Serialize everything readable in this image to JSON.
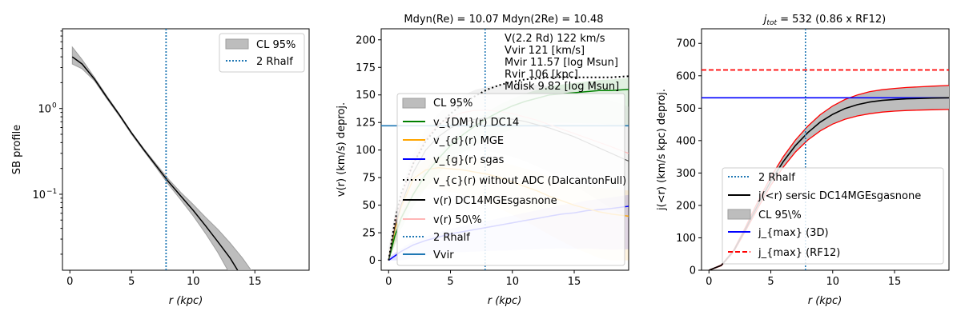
{
  "colors": {
    "grey_band": "#bdbdbd",
    "dm": "#008000",
    "disk": "#ffa500",
    "gas": "#0000ff",
    "vc": "#000000",
    "v50": "#ffb6b6",
    "rhalf": "#1f77b4",
    "vvir": "#1f77b4",
    "red": "#ff0000"
  },
  "chart_data": [
    {
      "type": "line",
      "title": "",
      "xlabel": "r (kpc)",
      "ylabel": "SB profile",
      "yscale": "log",
      "xlim": [
        -0.6,
        19.4
      ],
      "ylim": [
        0.013,
        8.5
      ],
      "xticks": [
        0,
        5,
        10,
        15
      ],
      "xtick_labels": [
        "0",
        "5",
        "10",
        "15"
      ],
      "yticks": [
        0.1,
        1
      ],
      "ytick_labels": [
        "10^{-1}",
        "10^{0}"
      ],
      "ytick_base": "10",
      "ytick_exps": [
        "−1",
        "0"
      ],
      "rhalf_x": 7.8,
      "legend": {
        "position": "upper right",
        "items": [
          "CL 95%",
          "2 Rhalf"
        ]
      },
      "series": [
        {
          "name": "SB",
          "x": [
            0.2,
            1,
            2,
            3,
            4,
            5,
            6,
            7,
            8,
            9,
            10,
            11,
            12,
            13,
            13.6
          ],
          "values": [
            4.0,
            3.3,
            2.2,
            1.35,
            0.85,
            0.52,
            0.33,
            0.215,
            0.14,
            0.095,
            0.065,
            0.043,
            0.028,
            0.018,
            0.013
          ]
        },
        {
          "name": "CL 95% upper",
          "x": [
            0.2,
            1,
            2,
            3,
            4,
            5,
            6,
            7,
            8,
            9,
            10,
            11,
            12,
            13,
            14,
            14.7
          ],
          "values": [
            5.2,
            3.7,
            2.3,
            1.4,
            0.87,
            0.53,
            0.34,
            0.225,
            0.15,
            0.105,
            0.076,
            0.054,
            0.039,
            0.027,
            0.018,
            0.013
          ]
        },
        {
          "name": "CL 95% lower",
          "x": [
            0.2,
            1,
            2,
            3,
            4,
            5,
            6,
            7,
            8,
            9,
            10,
            11,
            12,
            12.8
          ],
          "values": [
            3.3,
            2.9,
            2.1,
            1.3,
            0.82,
            0.5,
            0.32,
            0.205,
            0.13,
            0.086,
            0.056,
            0.035,
            0.021,
            0.013
          ]
        }
      ]
    },
    {
      "type": "line",
      "title": "Mdyn(Re) = 10.07  Mdyn(2Re) = 10.48",
      "xlabel": "r (kpc)",
      "ylabel": "v(r) (km/s) deproj.",
      "xlim": [
        -0.6,
        19.4
      ],
      "ylim": [
        -9,
        210
      ],
      "xticks": [
        0,
        5,
        10,
        15
      ],
      "xtick_labels": [
        "0",
        "5",
        "10",
        "15"
      ],
      "yticks": [
        0,
        25,
        50,
        75,
        100,
        125,
        150,
        175,
        200
      ],
      "ytick_labels": [
        "0",
        "25",
        "50",
        "75",
        "100",
        "125",
        "150",
        "175",
        "200"
      ],
      "rhalf_x": 7.8,
      "vvir_y": 122,
      "annotations": [
        "V(2.2 Rd) 122 km/s",
        "Vvir 121 [km/s]",
        "Mvir 11.57 [log Msun]",
        "Rvir 106 [kpc]",
        "Mdisk 9.82 [log Msun]"
      ],
      "legend": {
        "position": "center right",
        "items": [
          "CL 95%",
          "v_{DM}(r) DC14",
          "v_{d}(r) MGE",
          "v_{g}(r) sgas",
          "v_{c}(r) without ADC (DalcantonFull)",
          "v(r) DC14MGEsgasnone",
          "v(r) 50\\%",
          "2 Rhalf",
          "Vvir"
        ]
      },
      "series": [
        {
          "name": "v_DM(r) DC14",
          "x": [
            0,
            0.5,
            1,
            2,
            3,
            4,
            5,
            6,
            7,
            8,
            9,
            10,
            11,
            12,
            13,
            14,
            15,
            16,
            17,
            18,
            19.4
          ],
          "values": [
            0,
            22,
            38,
            60,
            78,
            92,
            104,
            114,
            122,
            129,
            135,
            140,
            144,
            147,
            150,
            151,
            152,
            153,
            154,
            154,
            155
          ]
        },
        {
          "name": "v_d(r) MGE",
          "x": [
            0,
            0.5,
            1,
            2,
            3,
            4,
            5,
            6,
            7,
            8,
            9,
            10,
            11,
            12,
            13,
            14,
            15,
            16,
            17,
            18,
            19.4
          ],
          "values": [
            0,
            28,
            48,
            74,
            82,
            84,
            83,
            82,
            80,
            78,
            75,
            71,
            67,
            63,
            58,
            54,
            50,
            47,
            44,
            42,
            40
          ]
        },
        {
          "name": "v_g(r) sgas",
          "x": [
            0,
            1,
            2,
            3,
            4,
            5,
            6,
            7,
            8,
            9,
            10,
            11,
            12,
            13,
            14,
            15,
            16,
            17,
            18,
            19.4
          ],
          "values": [
            0,
            8,
            14,
            18,
            21,
            24,
            26,
            28,
            30,
            32,
            34,
            36,
            38,
            40,
            42,
            43,
            45,
            46,
            47,
            49
          ]
        },
        {
          "name": "v_c(r) without ADC (DalcantonFull)",
          "x": [
            0,
            0.5,
            1,
            2,
            3,
            4,
            5,
            6,
            7,
            8,
            9,
            10,
            11,
            12,
            13,
            14,
            15,
            16,
            17,
            18,
            19.4
          ],
          "values": [
            0,
            35,
            60,
            88,
            108,
            122,
            133,
            142,
            149,
            155,
            159,
            162,
            164,
            165,
            166,
            166,
            166,
            166,
            166,
            166,
            167
          ]
        },
        {
          "name": "v(r) DC14MGEsgasnone",
          "x": [
            0,
            0.5,
            1,
            2,
            3,
            4,
            5,
            6,
            7,
            8,
            9,
            10,
            11,
            12,
            13,
            14,
            15,
            16,
            17,
            18,
            19.4
          ],
          "values": [
            0,
            30,
            50,
            80,
            100,
            112,
            120,
            125,
            128,
            129,
            129,
            128,
            126,
            123,
            120,
            116,
            112,
            107,
            102,
            97,
            90
          ]
        },
        {
          "name": "v(r) 50%",
          "x": [
            0,
            0.5,
            1,
            2,
            3,
            4,
            5,
            6,
            7,
            8,
            9,
            10,
            11,
            12,
            13,
            14,
            15,
            16,
            17,
            18,
            19.4
          ],
          "values": [
            0,
            32,
            55,
            88,
            110,
            123,
            130,
            134,
            136,
            136,
            135,
            133,
            130,
            127,
            123,
            119,
            115,
            111,
            107,
            103,
            97
          ]
        }
      ]
    },
    {
      "type": "line",
      "title": "j_{tot}= 532 (0.86 x RF12)",
      "title_prefix": "j",
      "title_sub": "tot",
      "title_rest": " = 532 (0.86 x RF12)",
      "xlabel": "r (kpc)",
      "ylabel": "j(<r) (km/s kpc) deproj.",
      "xlim": [
        -0.6,
        19.4
      ],
      "ylim": [
        0,
        745
      ],
      "xticks": [
        0,
        5,
        10,
        15
      ],
      "xtick_labels": [
        "0",
        "5",
        "10",
        "15"
      ],
      "yticks": [
        0,
        100,
        200,
        300,
        400,
        500,
        600,
        700
      ],
      "ytick_labels": [
        "0",
        "100",
        "200",
        "300",
        "400",
        "500",
        "600",
        "700"
      ],
      "rhalf_x": 7.8,
      "jmax_3d": 532,
      "jmax_rf12": 618,
      "legend": {
        "position": "lower right",
        "items": [
          "2 Rhalf",
          "j(<r) sersic DC14MGEsgasnone",
          "CL 95\\%",
          "j_{max} (3D)",
          "j_{max} (RF12)"
        ]
      },
      "series": [
        {
          "name": "j(<r) sersic DC14MGEsgasnone",
          "x": [
            0,
            1,
            2,
            3,
            4,
            5,
            6,
            7,
            8,
            9,
            10,
            11,
            12,
            13,
            14,
            15,
            16,
            17,
            18,
            19.4
          ],
          "values": [
            0,
            15,
            60,
            130,
            205,
            275,
            335,
            385,
            425,
            457,
            481,
            499,
            511,
            519,
            524,
            527,
            529,
            530,
            531,
            532
          ]
        },
        {
          "name": "CL 95% upper",
          "x": [
            0,
            1,
            2,
            3,
            4,
            5,
            6,
            7,
            8,
            9,
            10,
            11,
            12,
            13,
            14,
            15,
            16,
            17,
            18,
            19.4
          ],
          "values": [
            0,
            16,
            63,
            137,
            216,
            288,
            350,
            402,
            445,
            480,
            507,
            527,
            541,
            551,
            557,
            561,
            564,
            566,
            568,
            570
          ]
        },
        {
          "name": "CL 95% lower",
          "x": [
            0,
            1,
            2,
            3,
            4,
            5,
            6,
            7,
            8,
            9,
            10,
            11,
            12,
            13,
            14,
            15,
            16,
            17,
            18,
            19.4
          ],
          "values": [
            0,
            14,
            57,
            124,
            195,
            262,
            318,
            365,
            402,
            430,
            451,
            466,
            476,
            483,
            488,
            491,
            493,
            494,
            495,
            496
          ]
        }
      ]
    }
  ]
}
